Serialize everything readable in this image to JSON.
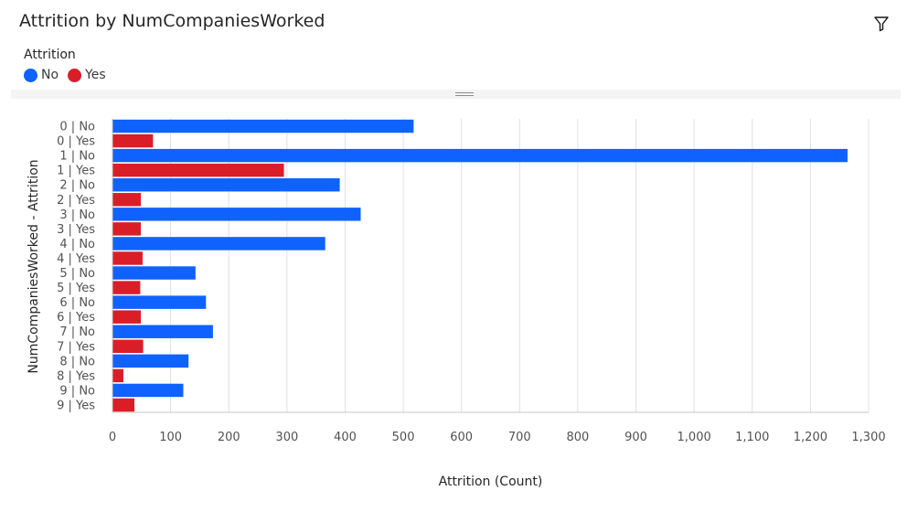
{
  "header": {
    "title": "Attrition by NumCompaniesWorked",
    "filter_icon": "filter-icon"
  },
  "legend": {
    "title": "Attrition",
    "items": [
      {
        "label": "No",
        "color": "#0f62fe"
      },
      {
        "label": "Yes",
        "color": "#da1e28"
      }
    ]
  },
  "chart_data": {
    "type": "bar",
    "orientation": "horizontal",
    "xlabel": "Attrition (Count)",
    "ylabel": "NumCompaniesWorked - Attrition",
    "xlim": [
      0,
      1300
    ],
    "xticks": [
      0,
      100,
      200,
      300,
      400,
      500,
      600,
      700,
      800,
      900,
      1000,
      1100,
      1200,
      1300
    ],
    "xtick_labels": [
      "0",
      "100",
      "200",
      "300",
      "400",
      "500",
      "600",
      "700",
      "800",
      "900",
      "1,000",
      "1,100",
      "1,200",
      "1,300"
    ],
    "grid": true,
    "categories": [
      "0 | No",
      "0 | Yes",
      "1 | No",
      "1 | Yes",
      "2 | No",
      "2 | Yes",
      "3 | No",
      "3 | Yes",
      "4 | No",
      "4 | Yes",
      "5 | No",
      "5 | Yes",
      "6 | No",
      "6 | Yes",
      "7 | No",
      "7 | Yes",
      "8 | No",
      "8 | Yes",
      "9 | No",
      "9 | Yes"
    ],
    "series_of_category": [
      "No",
      "Yes",
      "No",
      "Yes",
      "No",
      "Yes",
      "No",
      "Yes",
      "No",
      "Yes",
      "No",
      "Yes",
      "No",
      "Yes",
      "No",
      "Yes",
      "No",
      "Yes",
      "No",
      "Yes"
    ],
    "values": [
      517,
      69,
      1263,
      294,
      390,
      48,
      426,
      48,
      365,
      51,
      142,
      47,
      160,
      48,
      172,
      52,
      130,
      18,
      121,
      37
    ]
  }
}
